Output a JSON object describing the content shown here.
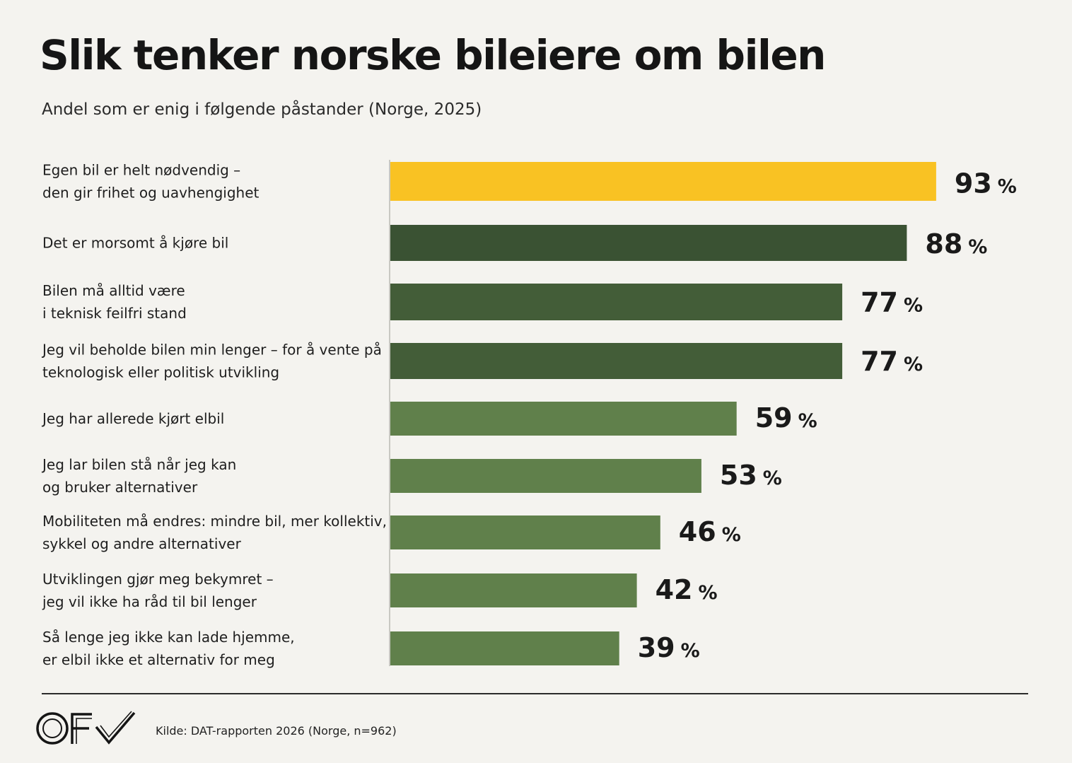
{
  "title": "Slik tenker norske bileiere om bilen",
  "subtitle": "Andel som er enig i følgende påstander (Norge, 2025)",
  "source": "Kilde: DAT-rapporten 2026 (Norge, n=962)",
  "logo": "OF✓",
  "colors": {
    "background": "#f4f3ef",
    "highlight": "#f9c223",
    "dark": "#3a5233",
    "medium": "#435d38",
    "light": "#60804b"
  },
  "chart_data": {
    "type": "bar",
    "orientation": "horizontal",
    "title": "Slik tenker norske bileiere om bilen",
    "subtitle": "Andel som er enig i følgende påstander (Norge, 2025)",
    "unit": "%",
    "xlim": [
      0,
      100
    ],
    "grid": false,
    "categories": [
      [
        "Egen bil er helt nødvendig –",
        "den gir frihet og uavhengighet"
      ],
      [
        "Det er morsomt å kjøre bil"
      ],
      [
        "Bilen må alltid være",
        "i teknisk feilfri stand"
      ],
      [
        "Jeg vil beholde bilen min lenger – for å vente på",
        "teknologisk eller politisk utvikling"
      ],
      [
        "Jeg har allerede kjørt elbil"
      ],
      [
        "Jeg lar bilen stå når jeg kan",
        "og bruker alternativer"
      ],
      [
        "Mobiliteten må endres: mindre bil, mer kollektiv,",
        "sykkel og andre alternativer"
      ],
      [
        "Utviklingen gjør meg bekymret –",
        "jeg vil ikke ha råd til bil lenger"
      ],
      [
        "Så lenge jeg ikke kan lade hjemme,",
        "er elbil ikke et alternativ for meg"
      ]
    ],
    "values": [
      93,
      88,
      77,
      77,
      59,
      53,
      46,
      42,
      39
    ],
    "bar_colors": [
      "#f9c223",
      "#3a5233",
      "#435d38",
      "#435d38",
      "#60804b",
      "#60804b",
      "#60804b",
      "#60804b",
      "#60804b"
    ]
  }
}
